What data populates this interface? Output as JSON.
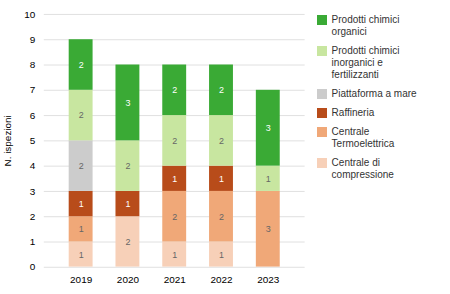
{
  "chart_data": {
    "type": "bar",
    "stacked": true,
    "categories": [
      "2019",
      "2020",
      "2021",
      "2022",
      "2023"
    ],
    "series": [
      {
        "name": "Centrale di\ncompressione",
        "color": "#f7d0b8",
        "values": [
          1,
          2,
          1,
          1,
          0
        ]
      },
      {
        "name": "Centrale\nTermoelettrica",
        "color": "#f0a878",
        "values": [
          1,
          0,
          2,
          2,
          3
        ]
      },
      {
        "name": "Raffineria",
        "color": "#b84c1a",
        "values": [
          1,
          1,
          1,
          1,
          0
        ]
      },
      {
        "name": "Piattaforma a mare",
        "color": "#cccccc",
        "values": [
          2,
          0,
          0,
          0,
          0
        ]
      },
      {
        "name": "Prodotti chimici\ninorganici e\nfertilizzanti",
        "color": "#c8e6a0",
        "values": [
          2,
          2,
          2,
          2,
          1
        ]
      },
      {
        "name": "Prodotti chimici\norganici",
        "color": "#3aaa35",
        "values": [
          2,
          3,
          2,
          2,
          3
        ]
      }
    ],
    "ylabel": "N. ispezioni",
    "ylim": [
      0,
      10
    ],
    "yticks": [
      0,
      1,
      2,
      3,
      4,
      5,
      6,
      7,
      8,
      9,
      10
    ],
    "grid": true,
    "data_labels": true,
    "legend": "right"
  }
}
